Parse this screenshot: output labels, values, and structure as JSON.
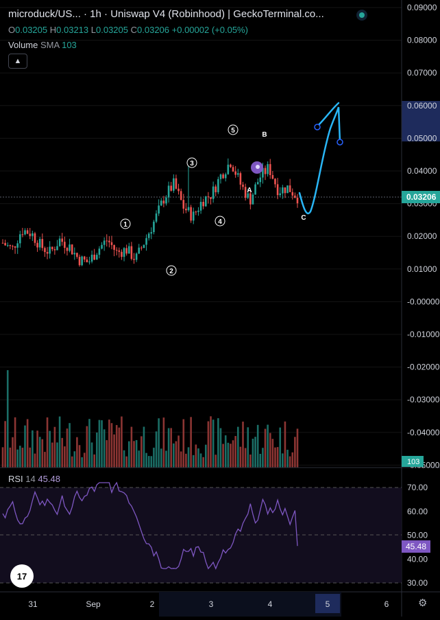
{
  "header": {
    "title": "microduck/US... · 1h · Uniswap V4 (Robinhood) | GeckoTerminal.co...",
    "ohlc": [
      {
        "label": "O",
        "value": "0.03205"
      },
      {
        "label": "H",
        "value": "0.03213"
      },
      {
        "label": "L",
        "value": "0.03205"
      },
      {
        "label": "C",
        "value": "0.03206"
      }
    ],
    "change": "+0.00002 (+0.05%)"
  },
  "volume_legend": {
    "label": "Volume",
    "sma": "SMA",
    "value": "103"
  },
  "collapse_icon": "chevron-up-icon",
  "rsi_legend": {
    "label": "RSI",
    "period": "14",
    "value": "45.48"
  },
  "price_axis": {
    "ticks": [
      "0.09000",
      "0.08000",
      "0.07000",
      "0.06000",
      "0.05000",
      "0.04000",
      "0.03000",
      "0.02000",
      "0.01000",
      "-0.00000",
      "-0.01000",
      "-0.02000",
      "-0.03000",
      "-0.04000",
      "-0.05000"
    ],
    "highlight_range": [
      "0.06000",
      "0.05000"
    ],
    "current_label": "0.03206",
    "volume_label": "103"
  },
  "rsi_axis": {
    "ticks": [
      "70.00",
      "60.00",
      "50.00",
      "40.00",
      "30.00"
    ],
    "current_label": "45.48"
  },
  "time_axis": {
    "ticks": [
      "31",
      "Sep",
      "2",
      "3",
      "4",
      "5",
      "6"
    ],
    "highlight_label": "5"
  },
  "wave_labels": [
    "1",
    "2",
    "3",
    "4",
    "5",
    "A",
    "B",
    "C"
  ],
  "colors": {
    "up": "#26a69a",
    "down": "#ef5350",
    "rsi": "#7e57c2",
    "drawing": "#29b6f6",
    "highlight": "#1e2b5c"
  },
  "logo_text": "17",
  "settings_icon": "gear-icon",
  "live_icon": "live-dot-icon",
  "chart_data": {
    "type": "candlestick",
    "interval": "1h",
    "price_range": [
      -0.05,
      0.09
    ],
    "x_dates": [
      "31",
      "Sep",
      "2",
      "3",
      "4",
      "5",
      "6"
    ],
    "approx_close_path": [
      0.018,
      0.016,
      0.022,
      0.021,
      0.017,
      0.015,
      0.019,
      0.017,
      0.013,
      0.012,
      0.016,
      0.019,
      0.015,
      0.016,
      0.013,
      0.019,
      0.025,
      0.032,
      0.036,
      0.029,
      0.026,
      0.031,
      0.033,
      0.039,
      0.043,
      0.036,
      0.031,
      0.038,
      0.041,
      0.034,
      0.035,
      0.032
    ],
    "last_close": 0.03206,
    "rsi": {
      "period": 14,
      "last": 45.48,
      "overbought": 70,
      "middle": 50,
      "oversold": 30,
      "range": [
        25,
        75
      ]
    }
  }
}
